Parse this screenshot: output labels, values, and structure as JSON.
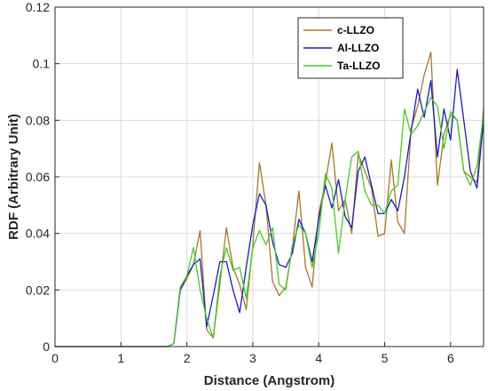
{
  "chart_data": {
    "type": "line",
    "title": "",
    "xlabel": "Distance (Angstrom)",
    "ylabel": "RDF (Arbitrary Unit)",
    "xlim": [
      0,
      6.5
    ],
    "ylim": [
      0,
      0.12
    ],
    "xticks": [
      "0",
      "1",
      "2",
      "3",
      "4",
      "5",
      "6"
    ],
    "yticks": [
      "0",
      "0.02",
      "0.04",
      "0.06",
      "0.08",
      "0.1",
      "0.12"
    ],
    "grid": true,
    "legend_position": "top-right",
    "series": [
      {
        "name": "c-LLZO",
        "color": "#a5782a",
        "x": [
          0,
          1.7,
          1.8,
          1.9,
          2.0,
          2.1,
          2.2,
          2.3,
          2.4,
          2.5,
          2.6,
          2.7,
          2.8,
          2.9,
          3.0,
          3.1,
          3.2,
          3.3,
          3.4,
          3.5,
          3.6,
          3.7,
          3.8,
          3.9,
          4.0,
          4.1,
          4.2,
          4.3,
          4.4,
          4.5,
          4.6,
          4.7,
          4.8,
          4.9,
          5.0,
          5.1,
          5.2,
          5.3,
          5.4,
          5.5,
          5.6,
          5.7,
          5.8,
          5.9,
          6.0,
          6.1,
          6.2,
          6.3,
          6.4,
          6.5
        ],
        "values": [
          0,
          0,
          0.001,
          0.02,
          0.024,
          0.029,
          0.041,
          0.006,
          0.003,
          0.022,
          0.042,
          0.028,
          0.022,
          0.013,
          0.036,
          0.065,
          0.05,
          0.023,
          0.018,
          0.021,
          0.035,
          0.055,
          0.028,
          0.021,
          0.047,
          0.058,
          0.072,
          0.048,
          0.052,
          0.04,
          0.068,
          0.062,
          0.056,
          0.039,
          0.04,
          0.066,
          0.044,
          0.04,
          0.077,
          0.085,
          0.096,
          0.104,
          0.057,
          0.075,
          0.082,
          0.08,
          0.062,
          0.06,
          0.058,
          0.084
        ]
      },
      {
        "name": "Al-LLZO",
        "color": "#1a1ac8",
        "x": [
          0,
          1.7,
          1.8,
          1.9,
          2.0,
          2.1,
          2.2,
          2.3,
          2.4,
          2.5,
          2.6,
          2.7,
          2.8,
          2.9,
          3.0,
          3.1,
          3.2,
          3.3,
          3.4,
          3.5,
          3.6,
          3.7,
          3.8,
          3.9,
          4.0,
          4.1,
          4.2,
          4.3,
          4.4,
          4.5,
          4.6,
          4.7,
          4.8,
          4.9,
          5.0,
          5.1,
          5.2,
          5.3,
          5.4,
          5.5,
          5.6,
          5.7,
          5.8,
          5.9,
          6.0,
          6.1,
          6.2,
          6.3,
          6.4,
          6.5
        ],
        "values": [
          0,
          0,
          0.001,
          0.02,
          0.025,
          0.029,
          0.031,
          0.007,
          0.018,
          0.03,
          0.03,
          0.02,
          0.012,
          0.028,
          0.043,
          0.054,
          0.05,
          0.037,
          0.029,
          0.028,
          0.033,
          0.045,
          0.04,
          0.03,
          0.045,
          0.057,
          0.049,
          0.059,
          0.046,
          0.042,
          0.062,
          0.067,
          0.057,
          0.047,
          0.047,
          0.052,
          0.048,
          0.06,
          0.076,
          0.091,
          0.081,
          0.094,
          0.067,
          0.084,
          0.073,
          0.098,
          0.08,
          0.062,
          0.056,
          0.08
        ]
      },
      {
        "name": "Ta-LLZO",
        "color": "#44cc22",
        "x": [
          0,
          1.7,
          1.8,
          1.9,
          2.0,
          2.1,
          2.2,
          2.3,
          2.4,
          2.5,
          2.6,
          2.7,
          2.8,
          2.9,
          3.0,
          3.1,
          3.2,
          3.3,
          3.4,
          3.5,
          3.6,
          3.7,
          3.8,
          3.9,
          4.0,
          4.1,
          4.2,
          4.3,
          4.4,
          4.5,
          4.6,
          4.7,
          4.8,
          4.9,
          5.0,
          5.1,
          5.2,
          5.3,
          5.4,
          5.5,
          5.6,
          5.7,
          5.8,
          5.9,
          6.0,
          6.1,
          6.2,
          6.3,
          6.4,
          6.5
        ],
        "values": [
          0,
          0,
          0.001,
          0.021,
          0.025,
          0.035,
          0.02,
          0.01,
          0.003,
          0.025,
          0.035,
          0.027,
          0.028,
          0.017,
          0.035,
          0.041,
          0.036,
          0.042,
          0.022,
          0.02,
          0.036,
          0.043,
          0.04,
          0.028,
          0.04,
          0.061,
          0.056,
          0.033,
          0.052,
          0.067,
          0.069,
          0.055,
          0.05,
          0.05,
          0.047,
          0.055,
          0.057,
          0.084,
          0.075,
          0.078,
          0.083,
          0.088,
          0.085,
          0.07,
          0.083,
          0.08,
          0.062,
          0.057,
          0.064,
          0.082
        ]
      }
    ]
  }
}
